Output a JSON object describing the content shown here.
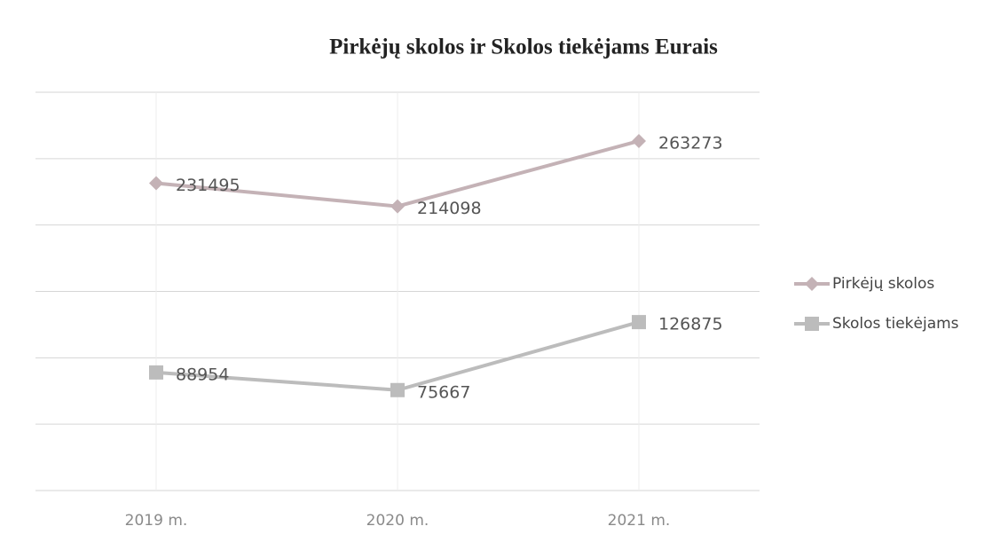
{
  "chart_data": {
    "type": "line",
    "title": "Pirkėjų skolos ir Skolos tiekėjams Eurais",
    "categories": [
      "2019 m.",
      "2020 m.",
      "2021 m."
    ],
    "series": [
      {
        "name": "Pirkėjų skolos",
        "color": "#c4b2b6",
        "marker": "diamond",
        "values": [
          231495,
          214098,
          263273
        ]
      },
      {
        "name": "Skolos tiekėjams",
        "color": "#bcbcbc",
        "marker": "square",
        "values": [
          88954,
          75667,
          126875
        ]
      }
    ],
    "ylim": [
      0,
      300000
    ],
    "yticks": [
      0,
      50000,
      100000,
      150000,
      200000,
      250000,
      300000
    ],
    "grid": true,
    "legend": "right"
  }
}
